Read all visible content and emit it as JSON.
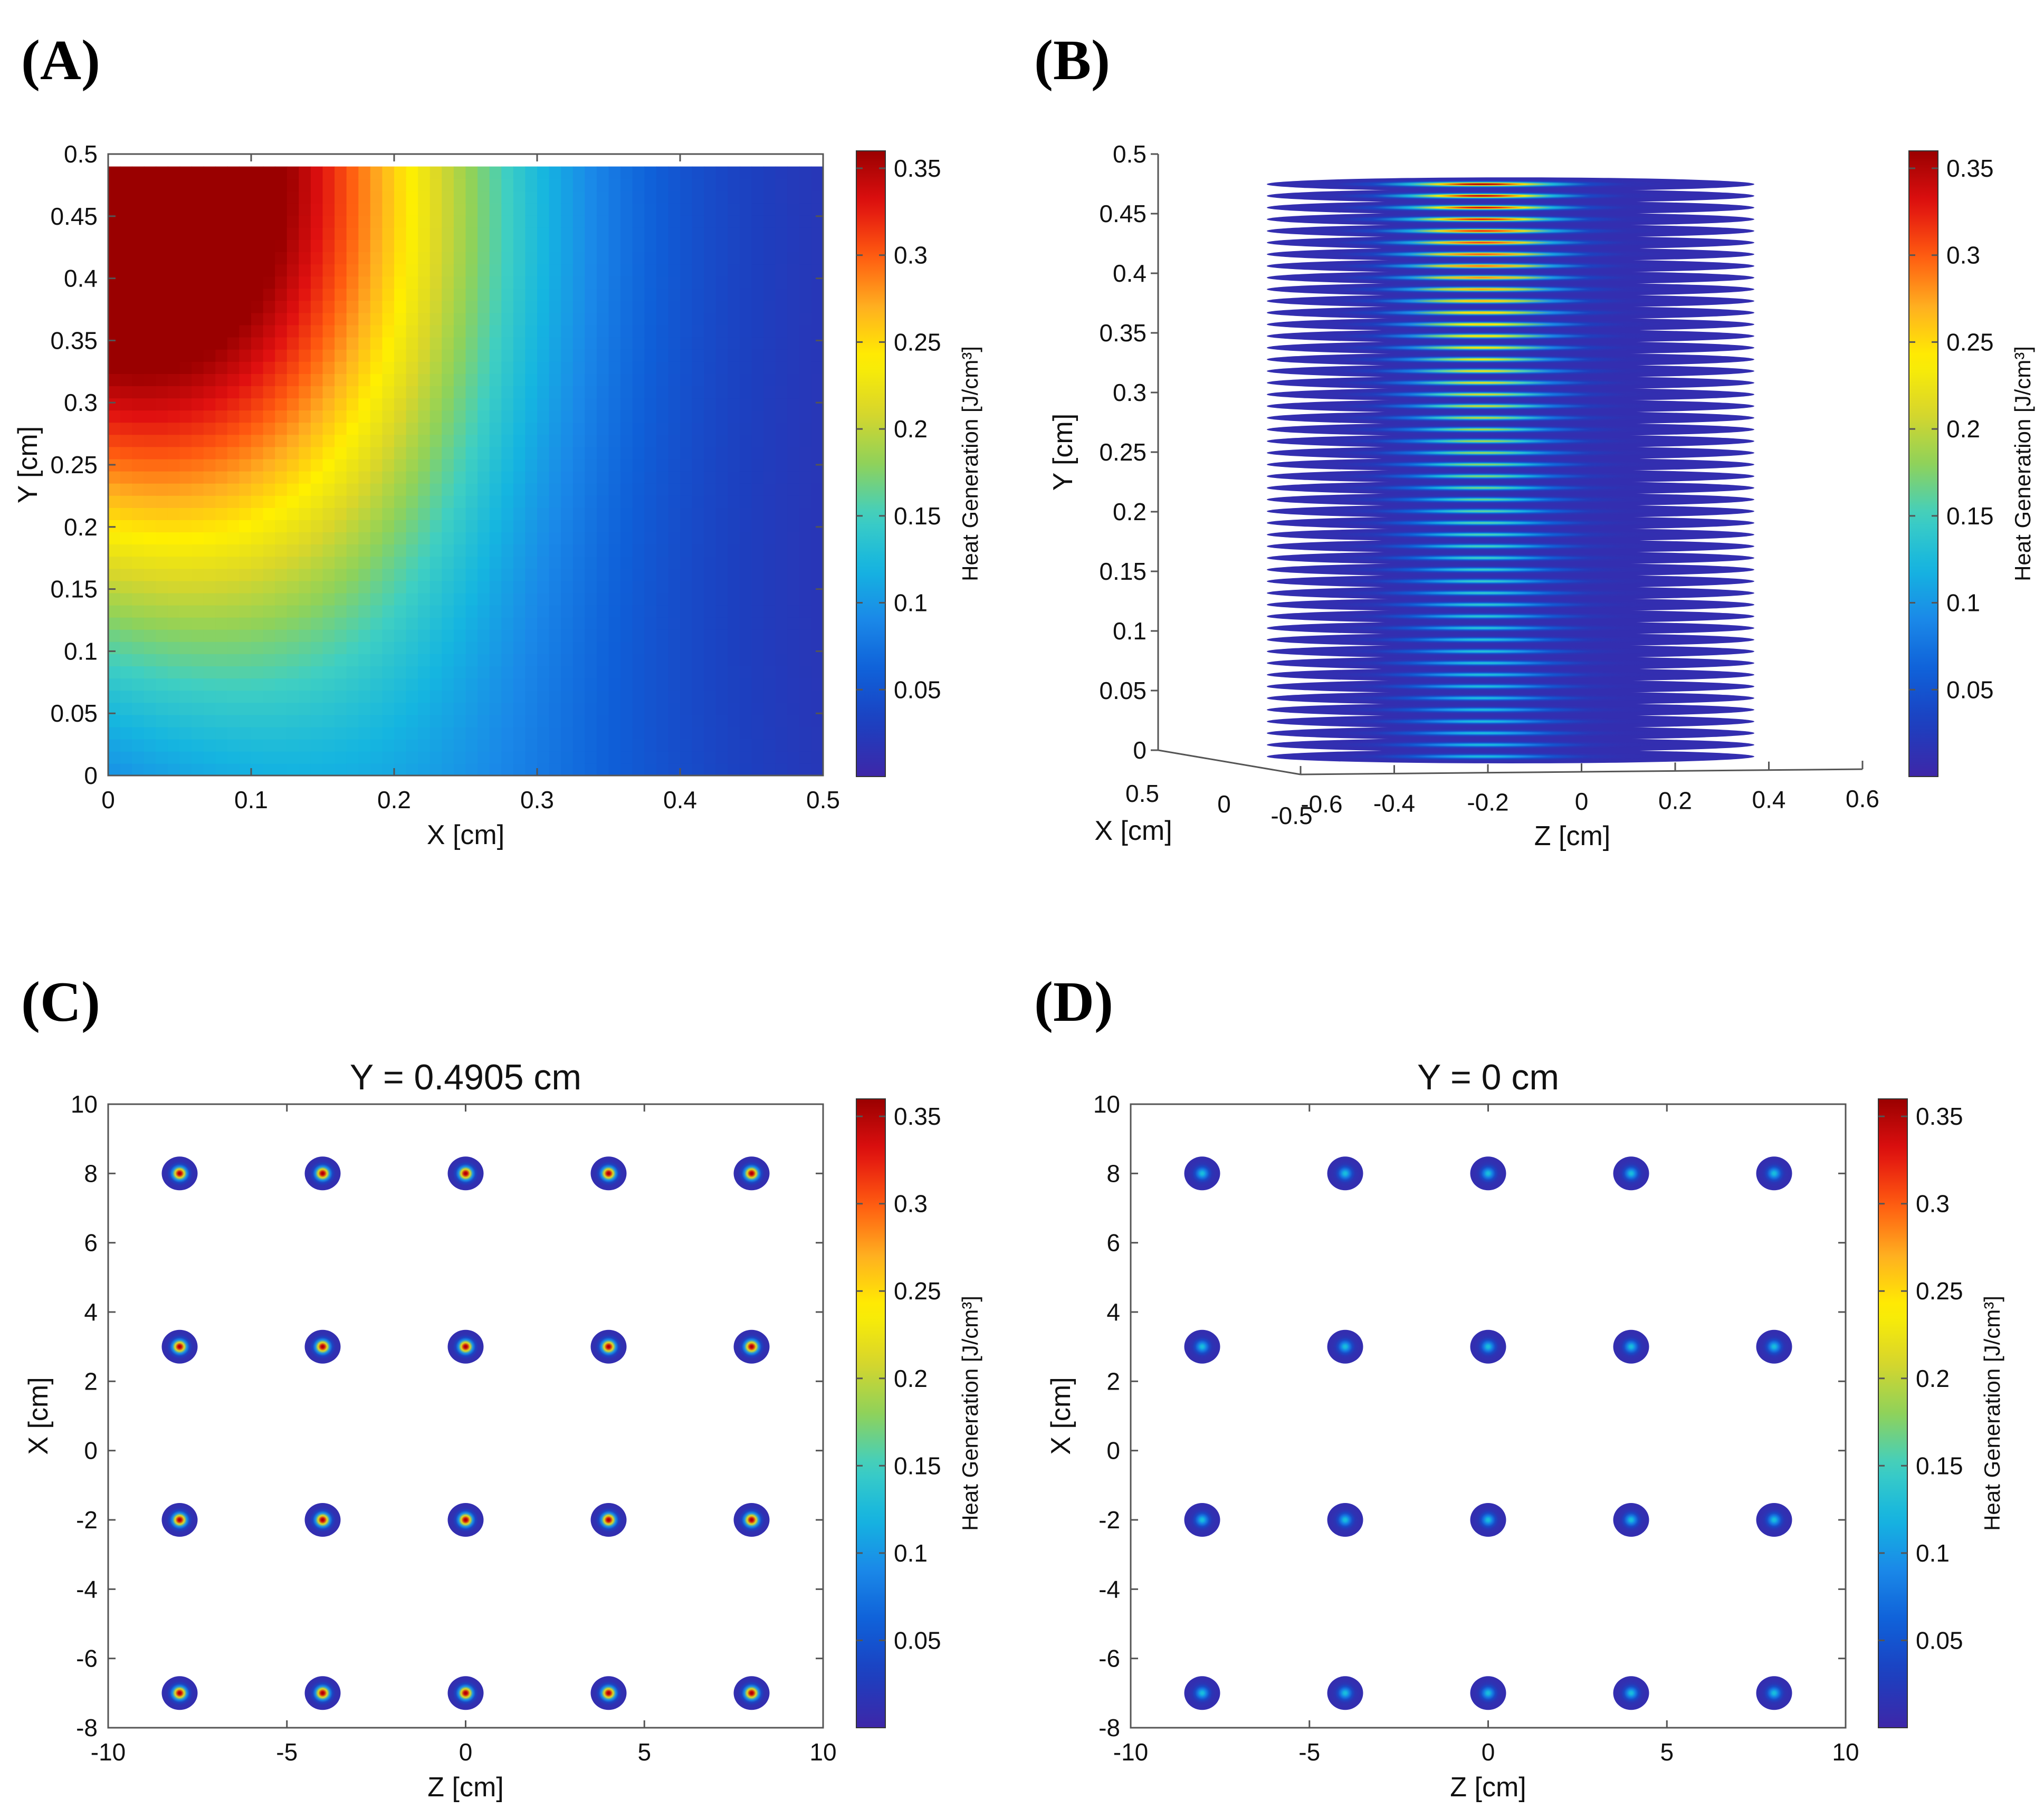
{
  "colors": {
    "colormap": [
      "#3e26a8",
      "#1d3fbf",
      "#0f5fd8",
      "#1a88e8",
      "#15b5e0",
      "#3fcfc2",
      "#8fd25a",
      "#d9d62a",
      "#fff000",
      "#ffb020",
      "#ff5a10",
      "#e01010",
      "#9a0000"
    ]
  },
  "panels": [
    {
      "id": "A",
      "label": "(A)"
    },
    {
      "id": "B",
      "label": "(B)"
    },
    {
      "id": "C",
      "label": "(C)"
    },
    {
      "id": "D",
      "label": "(D)"
    }
  ],
  "chart_data": [
    {
      "id": "A",
      "type": "heatmap",
      "title": "",
      "xlabel": "X [cm]",
      "ylabel": "Y [cm]",
      "xlim": [
        0,
        0.5
      ],
      "ylim": [
        0,
        0.5
      ],
      "xticks": [
        "0",
        "0.1",
        "0.2",
        "0.3",
        "0.4",
        "0.5"
      ],
      "yticks": [
        "0",
        "0.05",
        "0.1",
        "0.15",
        "0.2",
        "0.25",
        "0.3",
        "0.35",
        "0.4",
        "0.45",
        "0.5"
      ],
      "data_extent_y": [
        0,
        0.49
      ],
      "description_values": {
        "max_at": [
          0,
          0.49
        ],
        "max": 0.36,
        "min": 0.005
      },
      "colorbar": {
        "label": "Heat Generation [J/cm³]",
        "range": [
          0,
          0.36
        ],
        "ticks": [
          "0.05",
          "0.1",
          "0.15",
          "0.2",
          "0.25",
          "0.3",
          "0.35"
        ]
      }
    },
    {
      "id": "B",
      "type": "heatmap",
      "title": "",
      "xlabel": "X [cm]",
      "ylabel": "Y [cm]",
      "zlabel": "Z [cm]",
      "yticks": [
        "0",
        "0.05",
        "0.1",
        "0.15",
        "0.2",
        "0.25",
        "0.3",
        "0.35",
        "0.4",
        "0.45",
        "0.5"
      ],
      "zticks": [
        "-0.6",
        "-0.4",
        "-0.2",
        "0",
        "0.2",
        "0.4",
        "0.6"
      ],
      "xticks": [
        "0.5",
        "0",
        "-0.5"
      ],
      "ylim": [
        0,
        0.5
      ],
      "zlim": [
        -0.6,
        0.6
      ],
      "n_slices": 50,
      "slice_range_y": [
        0,
        0.48
      ],
      "disc_radius": 0.45,
      "colorbar": {
        "label": "Heat Generation [J/cm³]",
        "range": [
          0,
          0.36
        ],
        "ticks": [
          "0.05",
          "0.1",
          "0.15",
          "0.2",
          "0.25",
          "0.3",
          "0.35"
        ]
      }
    },
    {
      "id": "C",
      "type": "scatter",
      "title": "Y =  0.4905 cm",
      "xlabel": "Z [cm]",
      "ylabel": "X [cm]",
      "xlim": [
        -10,
        10
      ],
      "ylim": [
        -8,
        10
      ],
      "xticks": [
        "-10",
        "-5",
        "0",
        "5",
        "10"
      ],
      "yticks": [
        "-8",
        "-6",
        "-4",
        "-2",
        "0",
        "2",
        "4",
        "6",
        "8",
        "10"
      ],
      "grid_z": [
        -8,
        -4,
        0,
        4,
        8
      ],
      "grid_x": [
        8,
        3,
        -2,
        -7
      ],
      "peak_value": 0.36,
      "colorbar": {
        "label": "Heat Generation [J/cm³]",
        "range": [
          0,
          0.36
        ],
        "ticks": [
          "0.05",
          "0.1",
          "0.15",
          "0.2",
          "0.25",
          "0.3",
          "0.35"
        ]
      }
    },
    {
      "id": "D",
      "type": "scatter",
      "title": "Y =  0 cm",
      "xlabel": "Z [cm]",
      "ylabel": "X [cm]",
      "xlim": [
        -10,
        10
      ],
      "ylim": [
        -8,
        10
      ],
      "xticks": [
        "-10",
        "-5",
        "0",
        "5",
        "10"
      ],
      "yticks": [
        "-8",
        "-6",
        "-4",
        "-2",
        "0",
        "2",
        "4",
        "6",
        "8",
        "10"
      ],
      "grid_z": [
        -8,
        -4,
        0,
        4,
        8
      ],
      "grid_x": [
        8,
        3,
        -2,
        -7
      ],
      "peak_value": 0.12,
      "colorbar": {
        "label": "Heat Generation [J/cm³]",
        "range": [
          0,
          0.36
        ],
        "ticks": [
          "0.05",
          "0.1",
          "0.15",
          "0.2",
          "0.25",
          "0.3",
          "0.35"
        ]
      }
    }
  ]
}
